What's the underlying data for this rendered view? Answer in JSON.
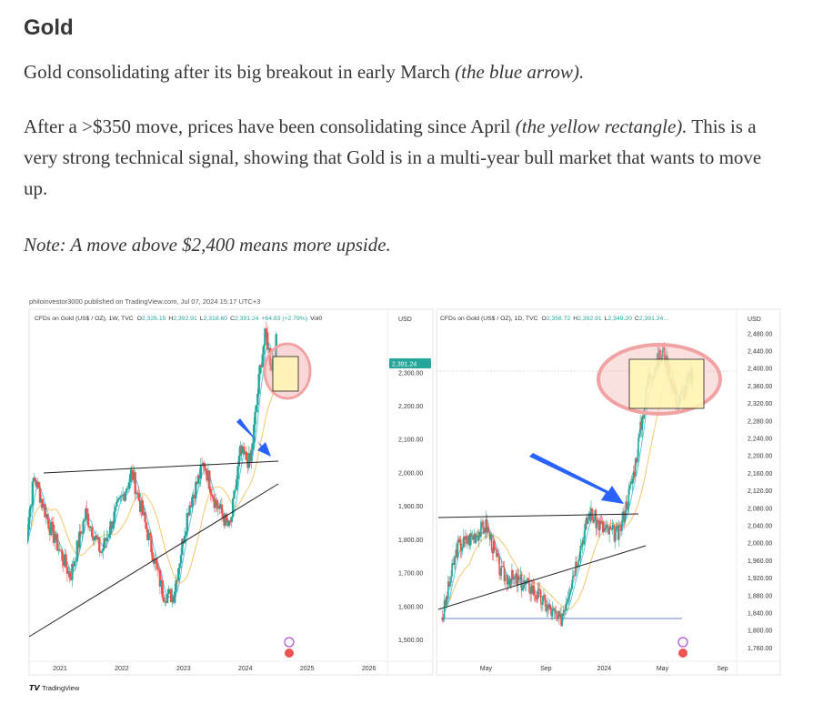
{
  "article": {
    "heading": "Gold",
    "p1_text": "Gold consolidating after its big breakout in early March ",
    "p1_italic": "(the blue arrow).",
    "p2_text_a": "After a >$350 move, prices have been consolidating since April ",
    "p2_italic": "(the yellow rectangle).",
    "p2_text_b": " This is a very strong technical signal, showing that Gold is in a multi-year bull market that wants to move up.",
    "p3_italic": "Note: A move above $2,400 means more upside."
  },
  "figure": {
    "publisher_line": "philoinvestor3000 published on TradingView.com, Jul 07, 2024 15:17 UTC+3",
    "footer_logo_text": "TradingView",
    "colors": {
      "bull": "#26a69a",
      "bear": "#ef5350",
      "ma_fast": "#5ec8e5",
      "ma_slow": "#f5c76b",
      "arrow": "#2962ff",
      "highlight_circle": "#f4a6a6",
      "consolidation_box": "#fff7b3",
      "price_badge": "#26a69a"
    }
  },
  "chart_data": [
    {
      "type": "candlestick",
      "header": "CFDs on Gold (US$ / OZ), 1W, TVC",
      "ohlc": {
        "O": "2,326.15",
        "H": "2,392.91",
        "L": "2,318.60",
        "C": "2,391.24",
        "change": "+64.83 (+2.79%)",
        "vol": "Vol0"
      },
      "currency": "USD",
      "y_ticks": [
        "1,500.00",
        "1,600.00",
        "1,700.00",
        "1,800.00",
        "1,900.00",
        "2,000.00",
        "2,100.00",
        "2,200.00",
        "2,300.00"
      ],
      "x_ticks": [
        "2021",
        "2022",
        "2023",
        "2024",
        "2025",
        "2026"
      ],
      "last_price_label": "2,391.24",
      "ylim": [
        1450,
        2430
      ],
      "close_path": [
        {
          "x": "2020-06",
          "y": 1760
        },
        {
          "x": "2020-08",
          "y": 1990
        },
        {
          "x": "2020-11",
          "y": 1840
        },
        {
          "x": "2021-03",
          "y": 1690
        },
        {
          "x": "2021-06",
          "y": 1880
        },
        {
          "x": "2021-09",
          "y": 1760
        },
        {
          "x": "2021-11",
          "y": 1850
        },
        {
          "x": "2022-03",
          "y": 2000
        },
        {
          "x": "2022-06",
          "y": 1820
        },
        {
          "x": "2022-09",
          "y": 1640
        },
        {
          "x": "2022-11",
          "y": 1630
        },
        {
          "x": "2023-02",
          "y": 1900
        },
        {
          "x": "2023-05",
          "y": 2030
        },
        {
          "x": "2023-07",
          "y": 1920
        },
        {
          "x": "2023-10",
          "y": 1830
        },
        {
          "x": "2023-12",
          "y": 2060
        },
        {
          "x": "2024-02",
          "y": 2030
        },
        {
          "x": "2024-03",
          "y": 2180
        },
        {
          "x": "2024-04",
          "y": 2330
        },
        {
          "x": "2024-05",
          "y": 2420
        },
        {
          "x": "2024-06",
          "y": 2320
        },
        {
          "x": "2024-07",
          "y": 2391.24
        }
      ]
    },
    {
      "type": "candlestick",
      "header": "CFDs on Gold (US$ / OZ), 1D, TVC",
      "ohlc": {
        "O": "2,356.72",
        "H": "2,392.91",
        "L": "2,349.20",
        "C": "2,391.24..."
      },
      "currency": "USD",
      "y_ticks": [
        "1,760.00",
        "1,800.00",
        "1,840.00",
        "1,880.00",
        "1,920.00",
        "1,960.00",
        "2,000.00",
        "2,040.00",
        "2,080.00",
        "2,120.00",
        "2,160.00",
        "2,200.00",
        "2,240.00",
        "2,280.00",
        "2,320.00",
        "2,360.00",
        "2,400.00",
        "2,440.00",
        "2,480.00"
      ],
      "x_ticks": [
        "May",
        "Sep",
        "2024",
        "May",
        "Sep"
      ],
      "ylim": [
        1740,
        2490
      ],
      "close_path": [
        {
          "x": "2023-02",
          "y": 1830
        },
        {
          "x": "2023-03",
          "y": 1990
        },
        {
          "x": "2023-05",
          "y": 2040
        },
        {
          "x": "2023-06",
          "y": 1930
        },
        {
          "x": "2023-08",
          "y": 1900
        },
        {
          "x": "2023-10",
          "y": 1820
        },
        {
          "x": "2023-12",
          "y": 2070
        },
        {
          "x": "2024-01",
          "y": 2030
        },
        {
          "x": "2024-02",
          "y": 2020
        },
        {
          "x": "2024-03",
          "y": 2160
        },
        {
          "x": "2024-04",
          "y": 2380
        },
        {
          "x": "2024-05",
          "y": 2440
        },
        {
          "x": "2024-06",
          "y": 2320
        },
        {
          "x": "2024-07",
          "y": 2391.24
        }
      ]
    }
  ]
}
